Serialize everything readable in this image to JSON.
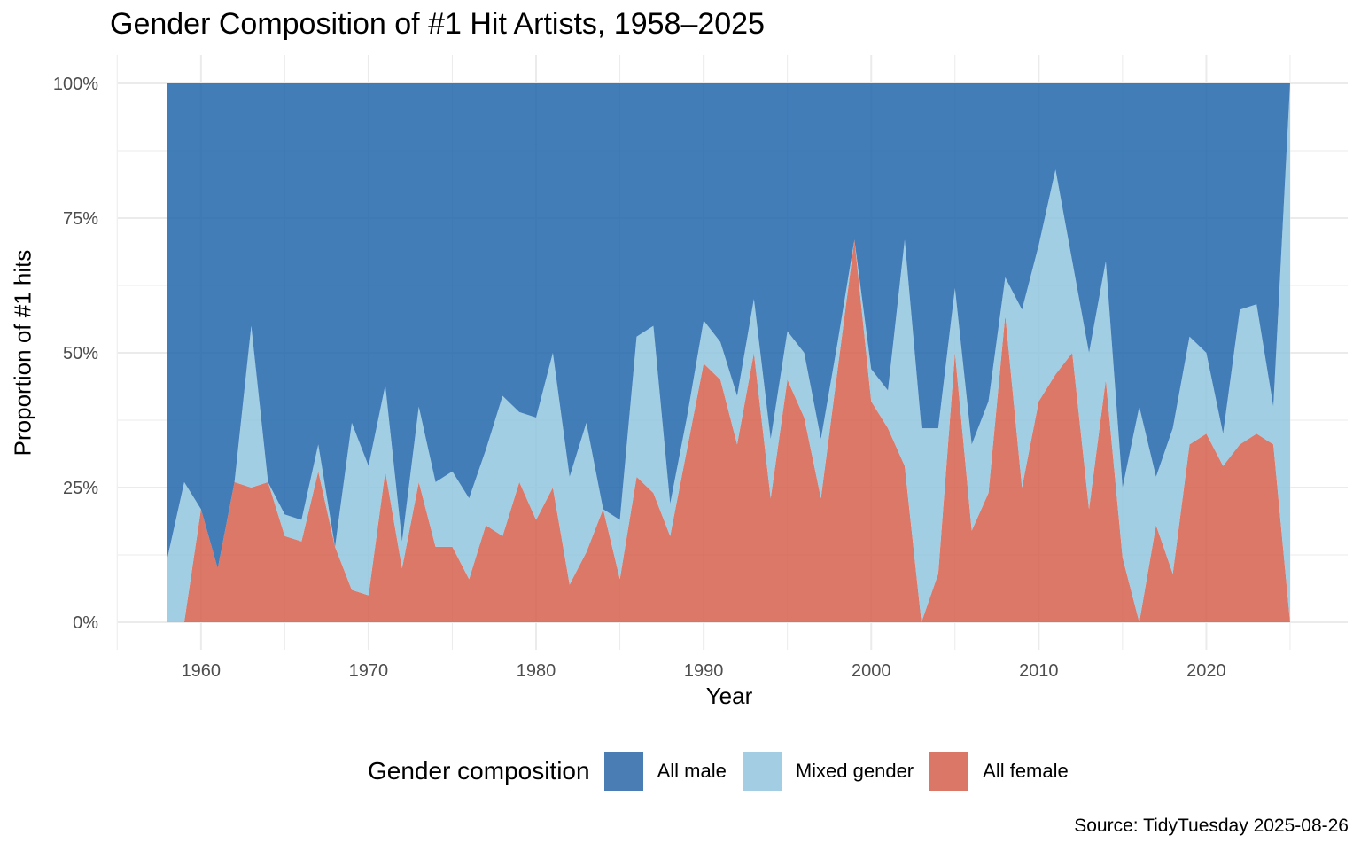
{
  "chart_data": {
    "type": "area",
    "stacked": true,
    "title": "Gender Composition of #1 Hit Artists, 1958–2025",
    "xlabel": "Year",
    "ylabel": "Proportion of #1 hits",
    "caption": "Source: TidyTuesday 2025-08-26",
    "legend_title": "Gender composition",
    "legend_position": "bottom",
    "grid": true,
    "xlim": [
      1958,
      2025
    ],
    "ylim": [
      0,
      100
    ],
    "x_ticks": [
      "1960",
      "1970",
      "1980",
      "1990",
      "2000",
      "2010",
      "2020"
    ],
    "y_ticks": [
      "0%",
      "25%",
      "50%",
      "75%",
      "100%"
    ],
    "x": [
      1958,
      1959,
      1960,
      1961,
      1962,
      1963,
      1964,
      1965,
      1966,
      1967,
      1968,
      1969,
      1970,
      1971,
      1972,
      1973,
      1974,
      1975,
      1976,
      1977,
      1978,
      1979,
      1980,
      1981,
      1982,
      1983,
      1984,
      1985,
      1986,
      1987,
      1988,
      1989,
      1990,
      1991,
      1992,
      1993,
      1994,
      1995,
      1996,
      1997,
      1998,
      1999,
      2000,
      2001,
      2002,
      2003,
      2004,
      2005,
      2006,
      2007,
      2008,
      2009,
      2010,
      2011,
      2012,
      2013,
      2014,
      2015,
      2016,
      2017,
      2018,
      2019,
      2020,
      2021,
      2022,
      2023,
      2024,
      2025
    ],
    "series": [
      {
        "name": "All female",
        "color": "#d6604d",
        "values": [
          0,
          0,
          21,
          10,
          26,
          25,
          26,
          16,
          15,
          28,
          14,
          6,
          5,
          28,
          10,
          26,
          14,
          14,
          8,
          18,
          16,
          26,
          19,
          25,
          7,
          13,
          21,
          8,
          27,
          24,
          16,
          32,
          48,
          45,
          33,
          50,
          23,
          45,
          38,
          23,
          47,
          71,
          41,
          36,
          29,
          0,
          9,
          50,
          17,
          24,
          57,
          25,
          41,
          46,
          50,
          21,
          45,
          12,
          0,
          18,
          9,
          33,
          35,
          29,
          33,
          35,
          33,
          0
        ]
      },
      {
        "name": "Mixed gender",
        "color": "#92c5de",
        "values": [
          12,
          26,
          0,
          0,
          0,
          30,
          0,
          4,
          4,
          5,
          0,
          31,
          24,
          16,
          5,
          14,
          12,
          14,
          15,
          14,
          26,
          13,
          19,
          25,
          20,
          24,
          0,
          11,
          26,
          31,
          6,
          6,
          8,
          7,
          9,
          10,
          11,
          9,
          12,
          11,
          5,
          0,
          6,
          7,
          42,
          36,
          27,
          12,
          16,
          17,
          7,
          33,
          29,
          38,
          17,
          29,
          22,
          13,
          40,
          9,
          27,
          20,
          15,
          6,
          25,
          24,
          7,
          100
        ]
      },
      {
        "name": "All male",
        "color": "#2166ac",
        "values": [
          88,
          74,
          79,
          90,
          74,
          45,
          74,
          80,
          81,
          67,
          86,
          63,
          71,
          56,
          85,
          60,
          74,
          72,
          77,
          68,
          58,
          61,
          62,
          50,
          73,
          63,
          79,
          81,
          47,
          45,
          78,
          62,
          44,
          48,
          58,
          40,
          66,
          46,
          50,
          66,
          48,
          29,
          53,
          57,
          29,
          64,
          64,
          38,
          67,
          59,
          36,
          42,
          30,
          16,
          33,
          50,
          33,
          75,
          60,
          73,
          64,
          47,
          50,
          65,
          42,
          41,
          60,
          0
        ]
      }
    ]
  }
}
